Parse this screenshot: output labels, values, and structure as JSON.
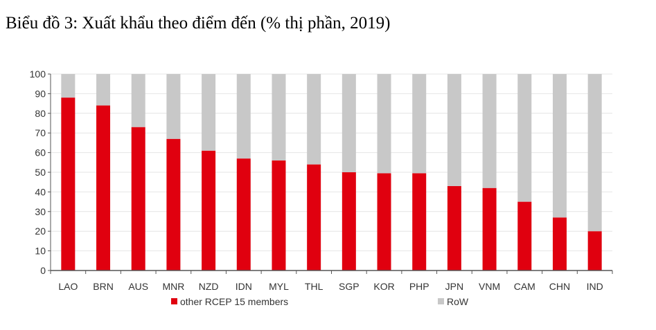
{
  "title": "Biểu đồ 3: Xuất khẩu theo điểm đến (% thị phần, 2019)",
  "colors": {
    "rcep": "#e0000f",
    "row": "#c8c8c8",
    "grid": "#e4e4e4",
    "axis": "#555555"
  },
  "chart_data": {
    "type": "bar",
    "stacked": true,
    "title": "Biểu đồ 3: Xuất khẩu theo điểm đến (% thị phần, 2019)",
    "categories": [
      "LAO",
      "BRN",
      "AUS",
      "MNR",
      "NZD",
      "IDN",
      "MYL",
      "THL",
      "SGP",
      "KOR",
      "PHP",
      "JPN",
      "VNM",
      "CAM",
      "CHN",
      "IND"
    ],
    "series": [
      {
        "name": "other RCEP 15 members",
        "values": [
          88,
          84,
          73,
          67,
          61,
          57,
          56,
          54,
          50,
          49.5,
          49.5,
          43,
          42,
          35,
          27,
          20
        ]
      },
      {
        "name": "RoW",
        "values": [
          12,
          16,
          27,
          33,
          39,
          43,
          44,
          46,
          50,
          50.5,
          50.5,
          57,
          58,
          65,
          73,
          80
        ]
      }
    ],
    "ylim": [
      0,
      100
    ],
    "yticks": [
      "0",
      "10",
      "20",
      "30",
      "40",
      "50",
      "60",
      "70",
      "80",
      "90",
      "100"
    ],
    "grid": true,
    "legend": "bottom"
  }
}
